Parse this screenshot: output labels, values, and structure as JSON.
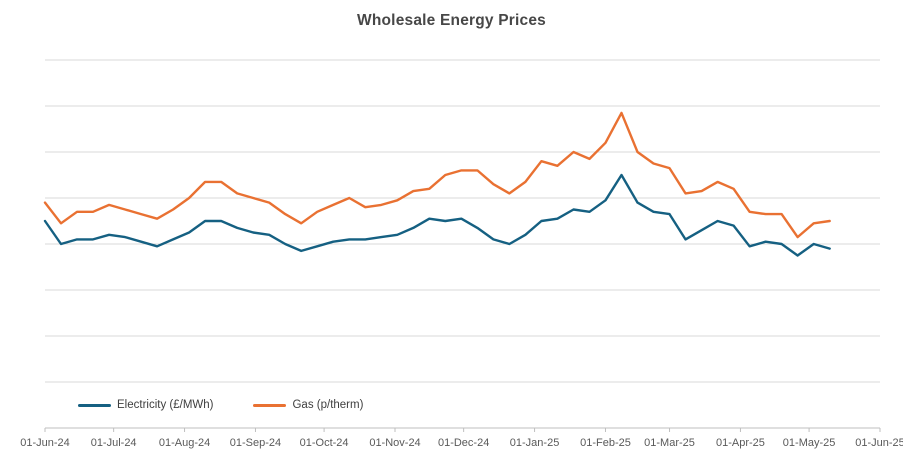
{
  "title": "Wholesale Energy Prices",
  "colors": {
    "electricity": "#156082",
    "gas": "#E97132",
    "gridline": "#D9D9D9",
    "axis_line": "#BFBFBF",
    "title_text": "#474747",
    "axis_text": "#595959",
    "background": "#FFFFFF"
  },
  "chart_data": {
    "type": "line",
    "title": "Wholesale Energy Prices",
    "xlabel": "",
    "ylabel": "",
    "y_axis_unlabeled": true,
    "ylim": [
      0,
      160
    ],
    "gridline_spacing": 20,
    "grid": "horizontal",
    "legend_position": "bottom-left-inside",
    "x_tick_labels": [
      "01-Jun-24",
      "01-Jul-24",
      "01-Aug-24",
      "01-Sep-24",
      "01-Oct-24",
      "01-Nov-24",
      "01-Dec-24",
      "01-Jan-25",
      "01-Feb-25",
      "01-Mar-25",
      "01-Apr-25",
      "01-May-25",
      "01-Jun-25"
    ],
    "x": [
      "2024-06-01",
      "2024-06-08",
      "2024-06-15",
      "2024-06-22",
      "2024-06-29",
      "2024-07-06",
      "2024-07-13",
      "2024-07-20",
      "2024-07-27",
      "2024-08-03",
      "2024-08-10",
      "2024-08-17",
      "2024-08-24",
      "2024-08-31",
      "2024-09-07",
      "2024-09-14",
      "2024-09-21",
      "2024-09-28",
      "2024-10-05",
      "2024-10-12",
      "2024-10-19",
      "2024-10-26",
      "2024-11-02",
      "2024-11-09",
      "2024-11-16",
      "2024-11-23",
      "2024-11-30",
      "2024-12-07",
      "2024-12-14",
      "2024-12-21",
      "2024-12-28",
      "2025-01-04",
      "2025-01-11",
      "2025-01-18",
      "2025-01-25",
      "2025-02-01",
      "2025-02-08",
      "2025-02-15",
      "2025-02-22",
      "2025-03-01",
      "2025-03-08",
      "2025-03-15",
      "2025-03-22",
      "2025-03-29",
      "2025-04-05",
      "2025-04-12",
      "2025-04-19",
      "2025-04-26",
      "2025-05-03",
      "2025-05-10"
    ],
    "series": [
      {
        "name": "Electricity (£/MWh)",
        "color": "#156082",
        "values": [
          90,
          80,
          82,
          82,
          84,
          83,
          81,
          79,
          82,
          85,
          90,
          90,
          87,
          85,
          84,
          80,
          77,
          79,
          81,
          82,
          82,
          83,
          84,
          87,
          91,
          90,
          91,
          87,
          82,
          80,
          84,
          90,
          91,
          95,
          94,
          99,
          110,
          98,
          94,
          93,
          82,
          86,
          90,
          88,
          79,
          81,
          80,
          75,
          80,
          78
        ]
      },
      {
        "name": "Gas (p/therm)",
        "color": "#E97132",
        "values": [
          98,
          89,
          94,
          94,
          97,
          95,
          93,
          91,
          95,
          100,
          107,
          107,
          102,
          100,
          98,
          93,
          89,
          94,
          97,
          100,
          96,
          97,
          99,
          103,
          104,
          110,
          112,
          112,
          106,
          102,
          107,
          116,
          114,
          120,
          117,
          124,
          137,
          120,
          115,
          113,
          102,
          103,
          107,
          104,
          94,
          93,
          93,
          83,
          89,
          90
        ]
      }
    ],
    "notes": "Y axis has no visible tick labels; values estimated with axis baseline = 0 and 20 units per gridline (8 gridlines, top = 160). Series plotted at ~weekly intervals; data ends ~10-May-25."
  }
}
